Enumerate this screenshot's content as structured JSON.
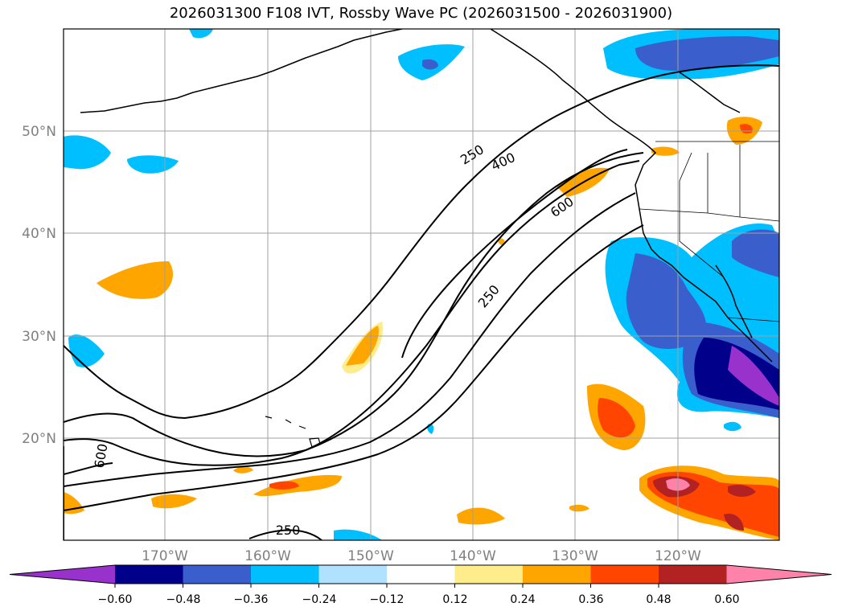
{
  "title": "2026031300 F108 IVT, Rossby Wave PC (2026031500 - 2026031900)",
  "lat_labels": [
    "50°N",
    "40°N",
    "30°N",
    "20°N"
  ],
  "lon_labels": [
    "170°W",
    "160°W",
    "150°W",
    "140°W",
    "130°W",
    "120°W"
  ],
  "contour_labels": [
    "250",
    "400",
    "600",
    "250",
    "600",
    "250"
  ],
  "colorbar": {
    "ticks": [
      "−0.60",
      "−0.48",
      "−0.36",
      "−0.24",
      "−0.12",
      "0.12",
      "0.24",
      "0.36",
      "0.48",
      "0.60"
    ],
    "colors": [
      "#9932cc",
      "#00008b",
      "#3a5fcd",
      "#00bfff",
      "#b0e2ff",
      "#ffffff",
      "#ffec8b",
      "#ffa500",
      "#ff4500",
      "#b22222",
      "#ff82ab"
    ]
  }
}
